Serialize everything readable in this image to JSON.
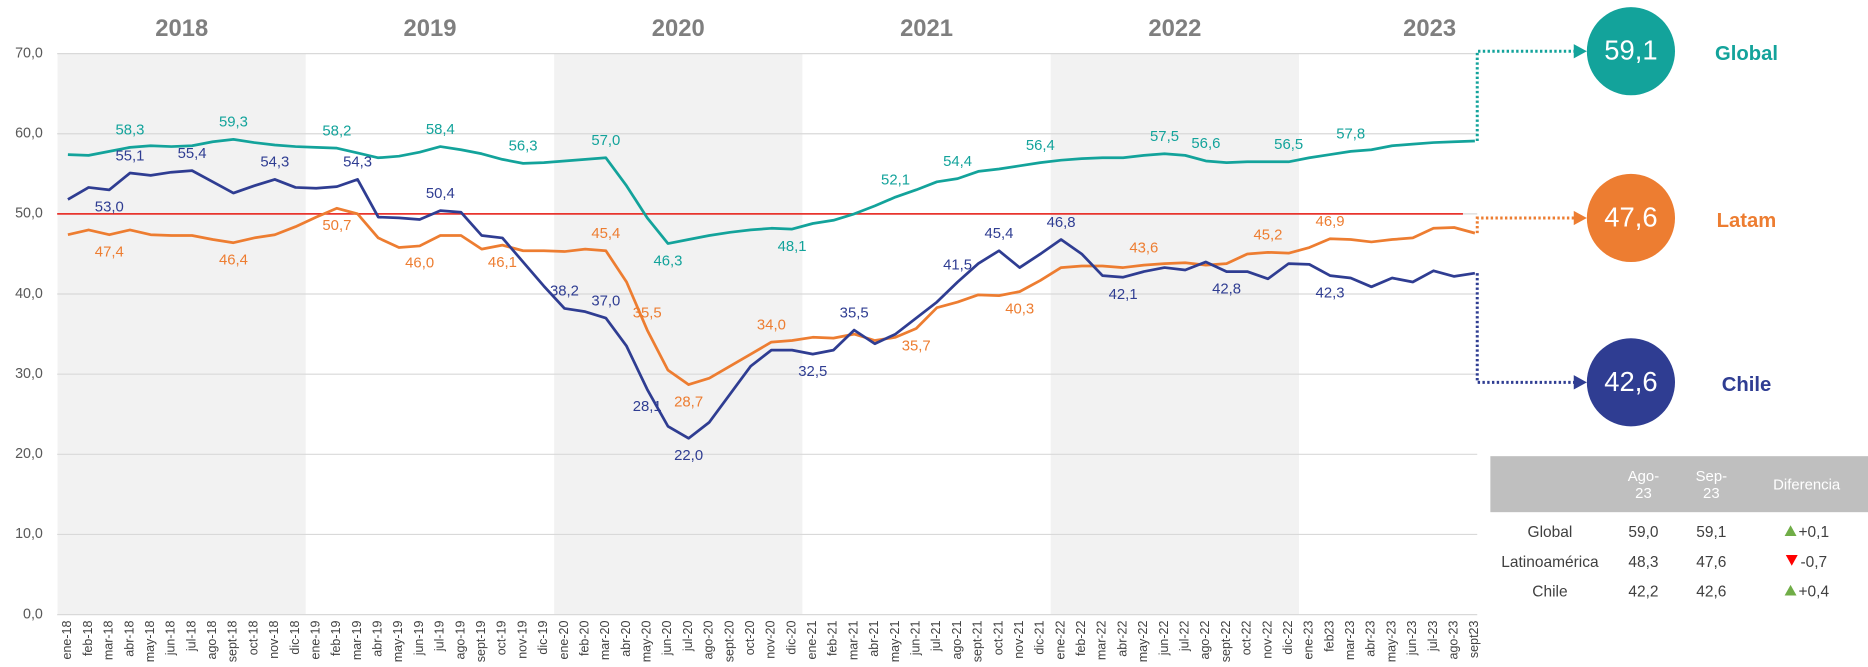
{
  "chart_data": {
    "type": "line",
    "categories": [
      "ene-18",
      "feb-18",
      "mar-18",
      "abr-18",
      "may-18",
      "jun-18",
      "jul-18",
      "ago-18",
      "sept-18",
      "oct-18",
      "nov-18",
      "dic-18",
      "ene-19",
      "feb-19",
      "mar-19",
      "abr-19",
      "may-19",
      "jun-19",
      "jul-19",
      "ago-19",
      "sept-19",
      "oct-19",
      "nov-19",
      "dic-19",
      "ene-20",
      "feb-20",
      "mar-20",
      "abr-20",
      "may-20",
      "jun-20",
      "jul-20",
      "ago-20",
      "sept-20",
      "oct-20",
      "nov-20",
      "dic-20",
      "ene-21",
      "feb-21",
      "mar-21",
      "abr-21",
      "may-21",
      "jun-21",
      "jul-21",
      "ago-21",
      "sept-21",
      "oct-21",
      "nov-21",
      "dic-21",
      "ene-22",
      "feb-22",
      "mar-22",
      "abr-22",
      "may-22",
      "jun-22",
      "jul-22",
      "ago-22",
      "sept-22",
      "oct-22",
      "nov-22",
      "dic-22",
      "ene-23",
      "feb23",
      "mar-23",
      "abr-23",
      "may-23",
      "jun-23",
      "jul-23",
      "ago-23",
      "sept23"
    ],
    "year_labels": [
      "2018",
      "2019",
      "2020",
      "2021",
      "2022",
      "2023"
    ],
    "band_colors": [
      "#f2f2f2",
      "#ffffff"
    ],
    "ylim": [
      0,
      70
    ],
    "yticks": [
      {
        "value": 0,
        "label": "0,0"
      },
      {
        "value": 10,
        "label": "10,0"
      },
      {
        "value": 20,
        "label": "20,0"
      },
      {
        "value": 30,
        "label": "30,0"
      },
      {
        "value": 40,
        "label": "40,0"
      },
      {
        "value": 50,
        "label": "50,0"
      },
      {
        "value": 60,
        "label": "60,0"
      },
      {
        "value": 70,
        "label": "70,0"
      }
    ],
    "grid": true,
    "reference_line": {
      "value": 50,
      "color": "#e8352e"
    },
    "series": [
      {
        "name": "Global",
        "color": "#13a39b",
        "values": [
          57.4,
          57.3,
          57.8,
          58.3,
          58.5,
          58.4,
          58.5,
          59.0,
          59.3,
          58.9,
          58.6,
          58.4,
          58.3,
          58.2,
          57.6,
          57.0,
          57.2,
          57.7,
          58.4,
          58.0,
          57.5,
          56.8,
          56.3,
          56.4,
          56.6,
          56.8,
          57.0,
          53.5,
          49.5,
          46.3,
          46.8,
          47.3,
          47.7,
          48.0,
          48.2,
          48.1,
          48.8,
          49.2,
          50.0,
          51.0,
          52.1,
          53.0,
          54.0,
          54.4,
          55.3,
          55.6,
          56.0,
          56.4,
          56.7,
          56.9,
          57.0,
          57.0,
          57.3,
          57.5,
          57.3,
          56.6,
          56.4,
          56.5,
          56.5,
          56.5,
          57.0,
          57.4,
          57.8,
          58.0,
          58.5,
          58.7,
          58.9,
          59.0,
          59.1
        ],
        "value_labels": [
          null,
          null,
          null,
          "58,3",
          null,
          null,
          null,
          null,
          "59,3",
          null,
          null,
          null,
          null,
          "58,2",
          null,
          null,
          null,
          null,
          "58,4",
          null,
          null,
          null,
          "56,3",
          null,
          null,
          null,
          "57,0",
          null,
          null,
          "46,3",
          null,
          null,
          null,
          null,
          null,
          "48,1",
          null,
          null,
          null,
          null,
          "52,1",
          null,
          null,
          "54,4",
          null,
          null,
          null,
          "56,4",
          null,
          null,
          null,
          null,
          null,
          "57,5",
          null,
          "56,6",
          null,
          null,
          null,
          "56,5",
          null,
          null,
          "57,8",
          null,
          null,
          null,
          null,
          null,
          "59,1"
        ]
      },
      {
        "name": "Latam",
        "color": "#ed7d31",
        "values": [
          47.4,
          48.0,
          47.4,
          48.0,
          47.4,
          47.3,
          47.3,
          46.8,
          46.4,
          47.0,
          47.4,
          48.4,
          49.6,
          50.7,
          50.0,
          47.0,
          45.8,
          46.0,
          47.3,
          47.3,
          45.6,
          46.1,
          45.4,
          45.4,
          45.3,
          45.6,
          45.4,
          41.5,
          35.5,
          30.5,
          28.7,
          29.5,
          31.0,
          32.5,
          34.0,
          34.2,
          34.6,
          34.5,
          35.0,
          34.2,
          34.6,
          35.7,
          38.3,
          39.0,
          39.9,
          39.8,
          40.3,
          41.7,
          43.3,
          43.5,
          43.5,
          43.3,
          43.6,
          43.8,
          43.9,
          43.6,
          43.8,
          45.0,
          45.2,
          45.1,
          45.8,
          46.9,
          46.8,
          46.5,
          46.8,
          47.0,
          48.2,
          48.3,
          47.6
        ],
        "value_labels": [
          null,
          null,
          "47,4",
          null,
          null,
          null,
          null,
          null,
          "46,4",
          null,
          null,
          null,
          null,
          "50,7",
          null,
          null,
          null,
          "46,0",
          null,
          null,
          null,
          "46,1",
          null,
          null,
          null,
          null,
          "45,4",
          null,
          "35,5",
          null,
          "28,7",
          null,
          null,
          null,
          "34,0",
          null,
          null,
          null,
          null,
          null,
          null,
          "35,7",
          null,
          null,
          null,
          null,
          "40,3",
          null,
          null,
          null,
          null,
          null,
          "43,6",
          null,
          null,
          null,
          null,
          null,
          "45,2",
          null,
          null,
          "46,9",
          null,
          null,
          null,
          null,
          null,
          null,
          "47,6"
        ]
      },
      {
        "name": "Chile",
        "color": "#2f3d92",
        "values": [
          51.8,
          53.3,
          53.0,
          55.1,
          54.8,
          55.2,
          55.4,
          54.0,
          52.6,
          53.5,
          54.3,
          53.3,
          53.2,
          53.4,
          54.3,
          49.6,
          49.5,
          49.3,
          50.4,
          50.2,
          47.3,
          47.0,
          44.0,
          41.0,
          38.2,
          37.8,
          37.0,
          33.5,
          28.1,
          23.5,
          22.0,
          24.0,
          27.5,
          31.0,
          33.0,
          33.0,
          32.5,
          33.0,
          35.5,
          33.8,
          35.0,
          37.0,
          39.0,
          41.5,
          43.8,
          45.4,
          43.3,
          45.0,
          46.8,
          45.0,
          42.3,
          42.1,
          42.8,
          43.3,
          43.0,
          44.0,
          42.8,
          42.8,
          41.9,
          43.8,
          43.7,
          42.3,
          42.0,
          40.9,
          42.0,
          41.5,
          42.9,
          42.2,
          42.6
        ],
        "value_labels": [
          null,
          null,
          "53,0",
          "55,1",
          null,
          null,
          "55,4",
          null,
          null,
          null,
          "54,3",
          null,
          null,
          null,
          "54,3",
          null,
          null,
          null,
          "50,4",
          null,
          null,
          null,
          null,
          null,
          "38,2",
          null,
          "37,0",
          null,
          "28,1",
          null,
          "22,0",
          null,
          null,
          null,
          null,
          null,
          "32,5",
          null,
          "35,5",
          null,
          null,
          null,
          null,
          "41,5",
          null,
          "45,4",
          null,
          null,
          "46,8",
          null,
          null,
          "42,1",
          null,
          null,
          null,
          null,
          "42,8",
          null,
          null,
          null,
          null,
          "42,3",
          null,
          null,
          null,
          null,
          null,
          null,
          "42,6"
        ]
      }
    ]
  },
  "table": {
    "columns": [
      "Ago-23",
      "Sep-23",
      "Diferencia"
    ],
    "rows": [
      [
        "Global",
        "59,0",
        "59,1",
        "+0,1"
      ],
      [
        "Latinoamérica",
        "48,3",
        "47,6",
        "-0,7"
      ],
      [
        "Chile",
        "42,2",
        "42,6",
        "+0,4"
      ]
    ]
  }
}
